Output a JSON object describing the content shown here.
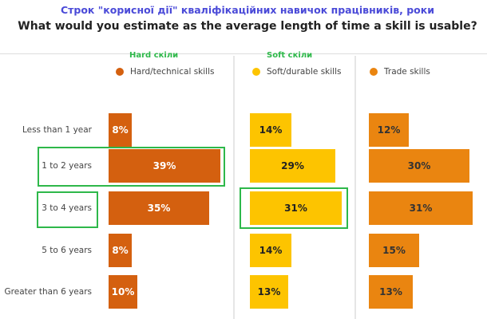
{
  "title": "Строк \"корисної дії\" кваліфікаційних навичок працівників, роки",
  "annotations": {
    "hard": "Hard скіли",
    "soft": "Soft скіли"
  },
  "chart_data": {
    "type": "bar",
    "title": "What would you estimate as the average length of time a skill is usable?",
    "categories": [
      "Less than 1 year",
      "1 to 2 years",
      "3 to 4 years",
      "5 to 6 years",
      "Greater than 6 years"
    ],
    "series": [
      {
        "name": "Hard/technical skills",
        "color": "#d4600f",
        "text_color": "#ffffff",
        "values": [
          8,
          39,
          35,
          8,
          10
        ],
        "labels": [
          "8%",
          "39%",
          "35%",
          "8%",
          "10%"
        ]
      },
      {
        "name": "Soft/durable skills",
        "color": "#fdc400",
        "text_color": "#222222",
        "values": [
          14,
          29,
          31,
          14,
          13
        ],
        "labels": [
          "14%",
          "29%",
          "31%",
          "14%",
          "13%"
        ]
      },
      {
        "name": "Trade skills",
        "color": "#ea8510",
        "text_color": "#333333",
        "values": [
          12,
          30,
          31,
          15,
          13
        ],
        "labels": [
          "12%",
          "30%",
          "31%",
          "15%",
          "13%"
        ]
      }
    ],
    "highlighted": [
      "1 to 2 years / Hard",
      "3 to 4 years / Hard",
      "3 to 4 years / Soft"
    ],
    "legend": "top",
    "unit": "%"
  }
}
